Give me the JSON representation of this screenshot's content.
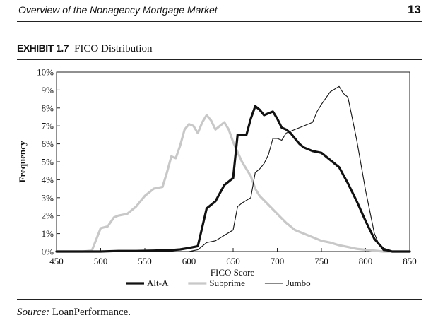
{
  "header": {
    "running_head": "Overview of the Nonagency Mortgage Market",
    "page_number": "13"
  },
  "exhibit": {
    "label": "EXHIBIT 1.7",
    "title": "FICO Distribution"
  },
  "source": {
    "label": "Source:",
    "text": "LoanPerformance."
  },
  "chart_data": {
    "type": "line",
    "title": "FICO Distribution",
    "xlabel": "FICO Score",
    "ylabel": "Frequency",
    "xlim": [
      450,
      850
    ],
    "ylim": [
      0,
      10
    ],
    "x_ticks": [
      450,
      500,
      550,
      600,
      650,
      700,
      750,
      800,
      850
    ],
    "x_tick_labels": [
      "450",
      "500",
      "550",
      "600",
      "650",
      "700",
      "750",
      "800",
      "850"
    ],
    "y_ticks": [
      0,
      1,
      2,
      3,
      4,
      5,
      6,
      7,
      8,
      9,
      10
    ],
    "y_tick_labels": [
      "0%",
      "1%",
      "2%",
      "3%",
      "4%",
      "5%",
      "6%",
      "7%",
      "8%",
      "9%",
      "10%"
    ],
    "grid": false,
    "legend_position": "bottom",
    "series": [
      {
        "name": "Alt-A",
        "color": "#111111",
        "style": "thick",
        "points": [
          [
            450,
            0
          ],
          [
            480,
            0
          ],
          [
            500,
            0
          ],
          [
            520,
            0.03
          ],
          [
            540,
            0.03
          ],
          [
            560,
            0.05
          ],
          [
            580,
            0.08
          ],
          [
            590,
            0.12
          ],
          [
            600,
            0.2
          ],
          [
            610,
            0.3
          ],
          [
            620,
            2.4
          ],
          [
            630,
            2.8
          ],
          [
            640,
            3.7
          ],
          [
            650,
            4.1
          ],
          [
            655,
            6.5
          ],
          [
            665,
            6.5
          ],
          [
            670,
            7.4
          ],
          [
            675,
            8.1
          ],
          [
            680,
            7.9
          ],
          [
            685,
            7.6
          ],
          [
            690,
            7.7
          ],
          [
            695,
            7.8
          ],
          [
            700,
            7.4
          ],
          [
            705,
            6.9
          ],
          [
            710,
            6.8
          ],
          [
            715,
            6.6
          ],
          [
            720,
            6.3
          ],
          [
            725,
            6.0
          ],
          [
            730,
            5.8
          ],
          [
            740,
            5.6
          ],
          [
            750,
            5.5
          ],
          [
            760,
            5.1
          ],
          [
            770,
            4.7
          ],
          [
            780,
            3.8
          ],
          [
            790,
            2.8
          ],
          [
            800,
            1.7
          ],
          [
            810,
            0.7
          ],
          [
            820,
            0.15
          ],
          [
            830,
            0
          ],
          [
            850,
            0
          ]
        ]
      },
      {
        "name": "Subprime",
        "color": "#c8c8c8",
        "style": "thick",
        "points": [
          [
            450,
            0
          ],
          [
            480,
            0
          ],
          [
            490,
            0.05
          ],
          [
            500,
            1.3
          ],
          [
            508,
            1.4
          ],
          [
            515,
            1.9
          ],
          [
            520,
            2.0
          ],
          [
            530,
            2.1
          ],
          [
            540,
            2.5
          ],
          [
            550,
            3.1
          ],
          [
            555,
            3.3
          ],
          [
            560,
            3.5
          ],
          [
            570,
            3.6
          ],
          [
            575,
            4.4
          ],
          [
            580,
            5.3
          ],
          [
            585,
            5.2
          ],
          [
            590,
            5.9
          ],
          [
            595,
            6.8
          ],
          [
            600,
            7.1
          ],
          [
            605,
            7.0
          ],
          [
            610,
            6.6
          ],
          [
            615,
            7.2
          ],
          [
            620,
            7.6
          ],
          [
            625,
            7.3
          ],
          [
            630,
            6.8
          ],
          [
            640,
            7.2
          ],
          [
            645,
            6.8
          ],
          [
            650,
            6.1
          ],
          [
            660,
            5.0
          ],
          [
            670,
            4.2
          ],
          [
            675,
            3.5
          ],
          [
            680,
            3.1
          ],
          [
            690,
            2.6
          ],
          [
            700,
            2.1
          ],
          [
            710,
            1.6
          ],
          [
            720,
            1.2
          ],
          [
            730,
            1.0
          ],
          [
            740,
            0.8
          ],
          [
            750,
            0.6
          ],
          [
            760,
            0.5
          ],
          [
            770,
            0.35
          ],
          [
            780,
            0.25
          ],
          [
            790,
            0.15
          ],
          [
            800,
            0.1
          ],
          [
            820,
            0
          ],
          [
            850,
            0
          ]
        ]
      },
      {
        "name": "Jumbo",
        "color": "#111111",
        "style": "thin",
        "points": [
          [
            450,
            0
          ],
          [
            600,
            0
          ],
          [
            605,
            0.05
          ],
          [
            610,
            0.1
          ],
          [
            615,
            0.3
          ],
          [
            620,
            0.5
          ],
          [
            630,
            0.6
          ],
          [
            640,
            0.9
          ],
          [
            650,
            1.2
          ],
          [
            655,
            2.5
          ],
          [
            660,
            2.7
          ],
          [
            670,
            3.0
          ],
          [
            675,
            4.4
          ],
          [
            680,
            4.6
          ],
          [
            685,
            4.9
          ],
          [
            690,
            5.4
          ],
          [
            695,
            6.3
          ],
          [
            700,
            6.3
          ],
          [
            705,
            6.2
          ],
          [
            710,
            6.6
          ],
          [
            720,
            6.8
          ],
          [
            730,
            7.0
          ],
          [
            740,
            7.2
          ],
          [
            745,
            7.8
          ],
          [
            750,
            8.2
          ],
          [
            760,
            8.9
          ],
          [
            770,
            9.2
          ],
          [
            775,
            8.8
          ],
          [
            780,
            8.6
          ],
          [
            785,
            7.4
          ],
          [
            790,
            6.2
          ],
          [
            800,
            3.4
          ],
          [
            810,
            1.0
          ],
          [
            815,
            0.4
          ],
          [
            820,
            0.05
          ],
          [
            830,
            0
          ],
          [
            850,
            0
          ]
        ]
      }
    ]
  }
}
